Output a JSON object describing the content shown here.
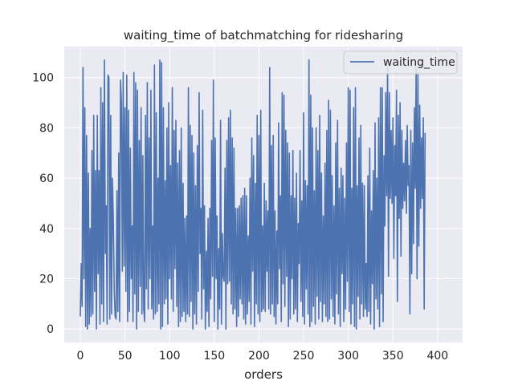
{
  "chart_data": {
    "type": "line",
    "title": "waiting_time of batchmatching for ridesharing",
    "xlabel": "orders",
    "ylabel": "",
    "xlim": [
      -18,
      428
    ],
    "ylim": [
      -5.35,
      112.35
    ],
    "xticks": [
      0,
      50,
      100,
      150,
      200,
      250,
      300,
      350,
      400
    ],
    "yticks": [
      0,
      20,
      40,
      60,
      80,
      100
    ],
    "grid": true,
    "legend_position": "top-right",
    "colors": {
      "line": "#4c72b0",
      "background": "#eaeaf2",
      "grid": "#ffffff"
    },
    "series": [
      {
        "name": "waiting_time",
        "values": [
          5,
          26,
          9,
          104,
          20,
          88,
          1,
          77,
          0,
          62,
          2,
          40,
          5,
          71,
          6,
          85,
          15,
          63,
          0,
          85,
          22,
          63,
          2,
          96,
          10,
          90,
          3,
          107,
          30,
          49,
          2,
          101,
          100,
          4,
          85,
          6,
          60,
          42,
          15,
          5,
          4,
          55,
          7,
          70,
          3,
          99,
          90,
          23,
          102,
          25,
          88,
          15,
          101,
          3,
          87,
          7,
          72,
          20,
          41,
          3,
          102,
          14,
          98,
          0,
          95,
          7,
          75,
          17,
          88,
          6,
          69,
          8,
          3,
          85,
          16,
          98,
          8,
          76,
          20,
          95,
          8,
          41,
          4,
          105,
          6,
          86,
          7,
          60,
          10,
          107,
          0,
          106,
          1,
          88,
          10,
          59,
          12,
          80,
          2,
          90,
          20,
          65,
          12,
          96,
          7,
          79,
          24,
          83,
          9,
          66,
          1,
          71,
          3,
          80,
          5,
          58,
          7,
          44,
          3,
          45,
          6,
          96,
          5,
          81,
          11,
          77,
          0,
          70,
          6,
          57,
          2,
          73,
          15,
          94,
          30,
          48,
          4,
          87,
          16,
          49,
          0,
          31,
          7,
          44,
          1,
          48,
          12,
          75,
          21,
          99,
          3,
          76,
          20,
          45,
          0,
          32,
          8,
          83,
          2,
          38,
          21,
          19,
          64,
          0,
          75,
          18,
          84,
          19,
          87,
          10,
          76,
          6,
          72,
          8,
          48,
          1,
          48,
          5,
          49,
          12,
          52,
          10,
          53,
          4,
          56,
          2,
          53,
          6,
          37,
          11,
          60,
          2,
          76,
          23,
          69,
          1,
          58,
          10,
          85,
          6,
          77,
          3,
          87,
          7,
          41,
          8,
          58,
          7,
          51,
          23,
          47,
          8,
          104,
          6,
          73,
          10,
          77,
          5,
          47,
          2,
          39,
          10,
          82,
          24,
          53,
          3,
          94,
          18,
          93,
          9,
          79,
          21,
          74,
          1,
          70,
          4,
          53,
          20,
          71,
          6,
          52,
          8,
          62,
          3,
          42,
          26,
          71,
          11,
          51,
          5,
          86,
          2,
          59,
          16,
          57,
          6,
          107,
          1,
          93,
          3,
          80,
          9,
          55,
          2,
          80,
          13,
          71,
          4,
          85,
          11,
          62,
          3,
          45,
          10,
          66,
          5,
          79,
          3,
          91,
          4,
          87,
          12,
          61,
          5,
          49,
          2,
          74,
          14,
          83,
          6,
          56,
          1,
          64,
          22,
          61,
          3,
          52,
          8,
          74,
          19,
          96,
          7,
          95,
          2,
          56,
          10,
          88,
          1,
          96,
          0,
          57,
          13,
          76,
          4,
          81,
          10,
          58,
          5,
          57,
          8,
          26,
          5,
          61,
          7,
          72,
          2,
          47,
          18,
          63,
          0,
          82,
          12,
          60,
          8,
          84,
          1,
          96,
          14,
          96,
          3,
          69,
          41,
          94,
          53,
          104,
          21,
          94,
          52,
          79,
          50,
          84,
          28,
          73,
          53,
          95,
          11,
          85,
          44,
          90,
          29,
          79,
          48,
          66,
          51,
          75,
          46,
          81,
          57,
          65,
          6,
          79,
          22,
          74,
          34,
          88,
          56,
          104,
          20,
          102,
          33,
          89,
          48,
          76,
          52,
          84,
          8,
          78
        ]
      }
    ]
  }
}
